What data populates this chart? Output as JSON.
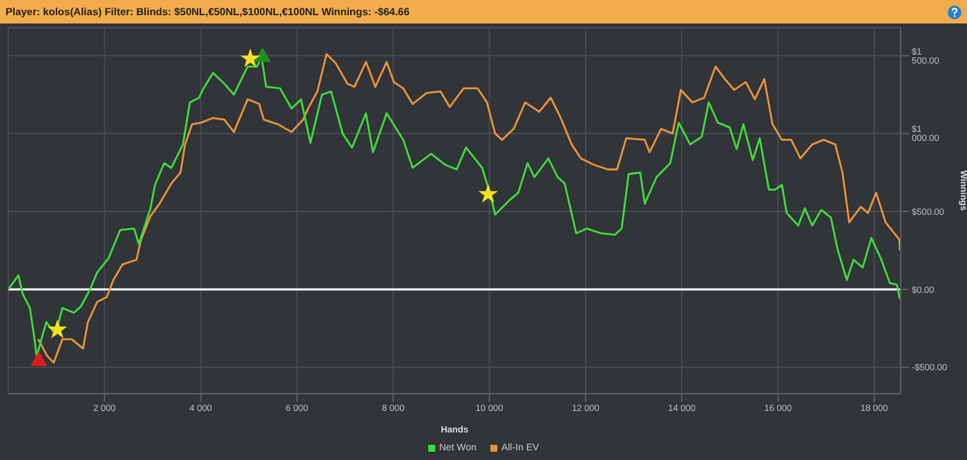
{
  "chart_data": {
    "type": "line",
    "title": "Player: kolos(Alias) Filter: Blinds: $50NL,€50NL,$100NL,€100NL Winnings: -$64.66",
    "xlabel": "Hands",
    "ylabel": "Winnings",
    "xlim": [
      0,
      18550
    ],
    "xticks": [
      {
        "value": 2000,
        "label": "2 000"
      },
      {
        "value": 4000,
        "label": "4 000"
      },
      {
        "value": 6000,
        "label": "6 000"
      },
      {
        "value": 8000,
        "label": "8 000"
      },
      {
        "value": 10000,
        "label": "10 000"
      },
      {
        "value": 12000,
        "label": "12 000"
      },
      {
        "value": 14000,
        "label": "14 000"
      },
      {
        "value": 16000,
        "label": "16 000"
      },
      {
        "value": 18000,
        "label": "18 000"
      }
    ],
    "ylim": [
      -670,
      1680
    ],
    "yticks": [
      {
        "value": -500,
        "label": "-$500.00"
      },
      {
        "value": 0,
        "label": "$0.00"
      },
      {
        "value": 500,
        "label": "$500.00"
      },
      {
        "value": 1000,
        "label": "$1 000.00"
      },
      {
        "value": 1500,
        "label": "$1 500.00"
      }
    ],
    "grid": true,
    "legend": "bottom",
    "ref_lines": [
      {
        "axis": "y",
        "value": 0,
        "color": "#ffffff"
      }
    ],
    "series": [
      {
        "name": "Net Won",
        "color": "#3fdc3a",
        "x": [
          0,
          210,
          300,
          450,
          545,
          590,
          790,
          980,
          1125,
          1365,
          1510,
          1700,
          1850,
          2085,
          2325,
          2615,
          2715,
          2955,
          3050,
          3240,
          3390,
          3630,
          3775,
          3965,
          4060,
          4255,
          4490,
          4690,
          4975,
          5170,
          5265,
          5360,
          5650,
          5890,
          6085,
          6280,
          6520,
          6710,
          6950,
          7145,
          7435,
          7580,
          7865,
          8210,
          8405,
          8790,
          9080,
          9320,
          9515,
          9850,
          10020,
          10120,
          10410,
          10600,
          10795,
          10935,
          11225,
          11420,
          11565,
          11805,
          12025,
          12315,
          12605,
          12750,
          12895,
          13135,
          13230,
          13475,
          13760,
          13935,
          14175,
          14415,
          14560,
          14750,
          14995,
          15140,
          15280,
          15475,
          15620,
          15810,
          15935,
          16080,
          16180,
          16420,
          16560,
          16710,
          16900,
          17100,
          17235,
          17430,
          17570,
          17760,
          17940,
          18135,
          18325,
          18470,
          18535
        ],
        "values": [
          0,
          90,
          -30,
          -120,
          -320,
          -430,
          -210,
          -290,
          -120,
          -150,
          -110,
          0,
          110,
          200,
          380,
          390,
          290,
          520,
          670,
          810,
          780,
          930,
          1200,
          1230,
          1290,
          1390,
          1320,
          1250,
          1430,
          1430,
          1490,
          1300,
          1290,
          1160,
          1220,
          940,
          1250,
          1270,
          1000,
          910,
          1130,
          880,
          1130,
          960,
          780,
          870,
          800,
          770,
          910,
          780,
          610,
          480,
          570,
          620,
          810,
          720,
          840,
          720,
          680,
          360,
          390,
          360,
          350,
          390,
          740,
          750,
          550,
          720,
          810,
          1070,
          930,
          980,
          1200,
          1070,
          1040,
          900,
          1060,
          830,
          970,
          640,
          640,
          670,
          490,
          410,
          520,
          410,
          510,
          460,
          260,
          60,
          190,
          140,
          330,
          200,
          40,
          30,
          -65
        ]
      },
      {
        "name": "All-In EV",
        "color": "#ec9338",
        "x": [
          620,
          815,
          945,
          1125,
          1315,
          1555,
          1655,
          1850,
          2045,
          2185,
          2375,
          2665,
          2760,
          2955,
          3145,
          3390,
          3580,
          3675,
          3820,
          4010,
          4255,
          4490,
          4690,
          4975,
          5215,
          5310,
          5600,
          5890,
          6130,
          6230,
          6425,
          6615,
          6810,
          7050,
          7195,
          7435,
          7630,
          7865,
          8015,
          8210,
          8405,
          8695,
          8985,
          9175,
          9465,
          9755,
          9950,
          10120,
          10265,
          10505,
          10745,
          11035,
          11275,
          11470,
          11710,
          11905,
          12170,
          12460,
          12655,
          12845,
          13230,
          13330,
          13570,
          13810,
          13980,
          14220,
          14465,
          14700,
          14895,
          15090,
          15330,
          15520,
          15715,
          15885,
          16080,
          16275,
          16465,
          16710,
          16950,
          17190,
          17340,
          17480,
          17720,
          17870,
          18040,
          18235,
          18520,
          18535
        ],
        "values": [
          -320,
          -430,
          -470,
          -320,
          -320,
          -380,
          -210,
          -80,
          -50,
          60,
          160,
          190,
          320,
          470,
          550,
          680,
          750,
          930,
          1060,
          1070,
          1100,
          1090,
          1010,
          1220,
          1190,
          1090,
          1060,
          1010,
          1090,
          1160,
          1270,
          1510,
          1450,
          1320,
          1300,
          1460,
          1300,
          1460,
          1330,
          1290,
          1190,
          1260,
          1270,
          1170,
          1290,
          1290,
          1200,
          1000,
          960,
          1030,
          1200,
          1140,
          1230,
          1110,
          930,
          840,
          800,
          770,
          770,
          970,
          960,
          880,
          1030,
          1000,
          1280,
          1200,
          1230,
          1430,
          1350,
          1280,
          1330,
          1220,
          1350,
          1060,
          960,
          960,
          840,
          930,
          960,
          930,
          750,
          430,
          530,
          490,
          620,
          430,
          320,
          250
        ]
      },
      {
        "type": "scatter",
        "marker": "star",
        "color": "#f5e21c",
        "x": [
          1020,
          5030,
          9975
        ],
        "values": [
          -260,
          1480,
          610
        ]
      },
      {
        "type": "scatter",
        "marker": "triangle",
        "color": "#e01b1b",
        "x": [
          635
        ],
        "values": [
          -460
        ]
      },
      {
        "type": "scatter",
        "marker": "triangle",
        "color": "#1f8f1f",
        "x": [
          5285
        ],
        "values": [
          1490
        ]
      }
    ]
  }
}
